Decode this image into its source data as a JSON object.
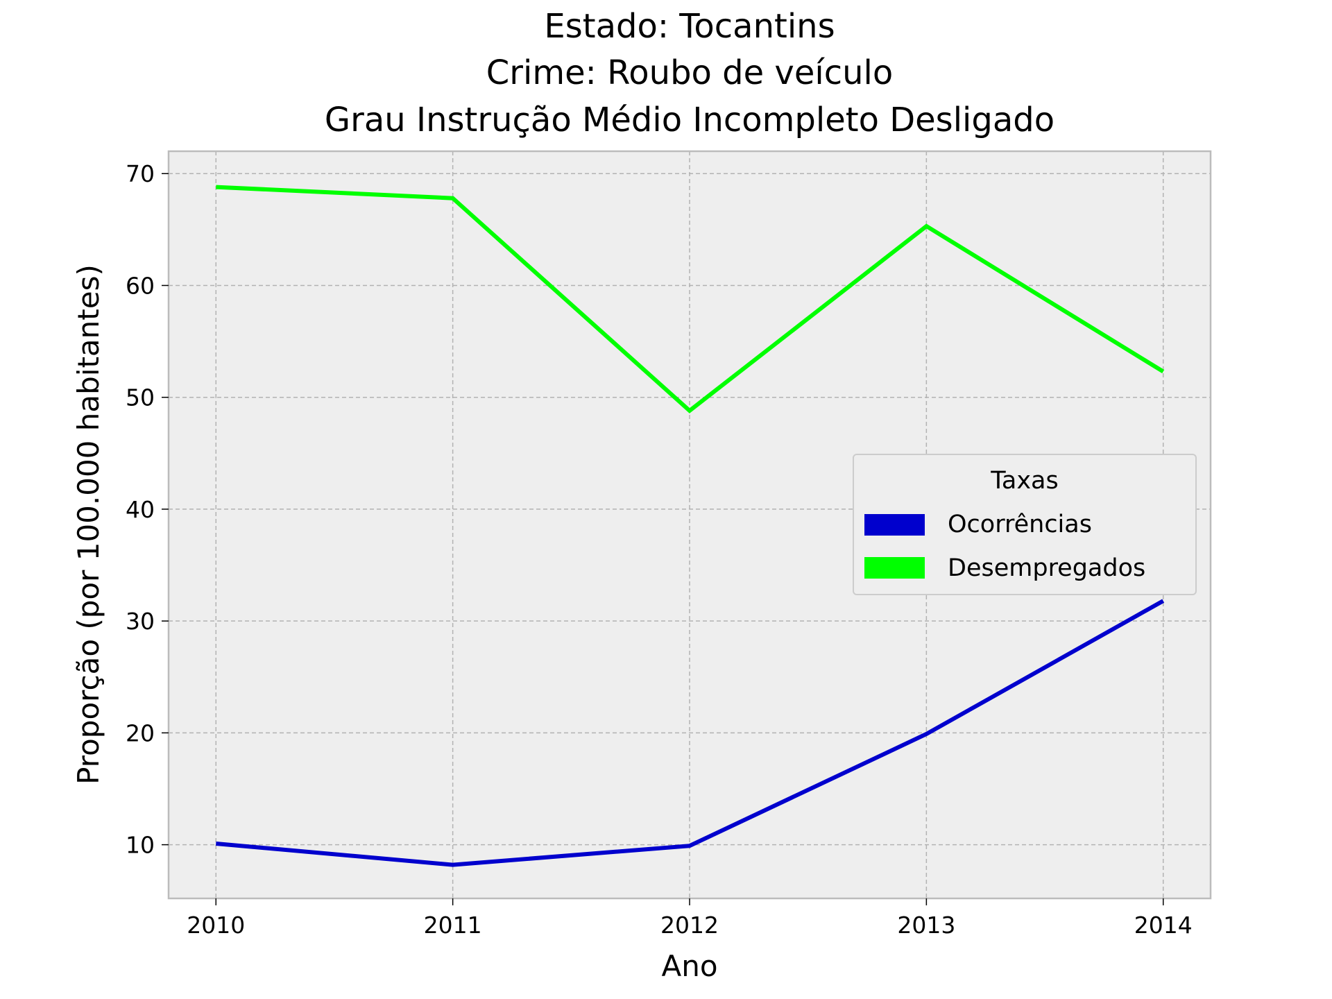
{
  "chart_data": {
    "type": "line",
    "title_lines": [
      "Estado: Tocantins",
      "Crime: Roubo de veículo",
      "Grau Instrução  Médio Incompleto   Desligado"
    ],
    "xlabel": "Ano",
    "ylabel": "Proporção (por 100.000 habitantes)",
    "x": [
      2010,
      2011,
      2012,
      2013,
      2014
    ],
    "x_ticks": [
      "2010",
      "2011",
      "2012",
      "2013",
      "2014"
    ],
    "y_ticks": [
      10,
      20,
      30,
      40,
      50,
      60,
      70
    ],
    "xlim": [
      2009.8,
      2014.2
    ],
    "ylim": [
      5.2,
      72.0
    ],
    "grid": true,
    "legend": {
      "title": "Taxas",
      "placement": "center-right"
    },
    "series": [
      {
        "name": "Ocorrências",
        "color": "#0000cd",
        "values": [
          10.1,
          8.2,
          9.9,
          19.9,
          31.8
        ]
      },
      {
        "name": "Desempregados",
        "color": "#00ff00",
        "values": [
          68.8,
          67.8,
          48.8,
          65.3,
          52.3
        ]
      }
    ]
  }
}
